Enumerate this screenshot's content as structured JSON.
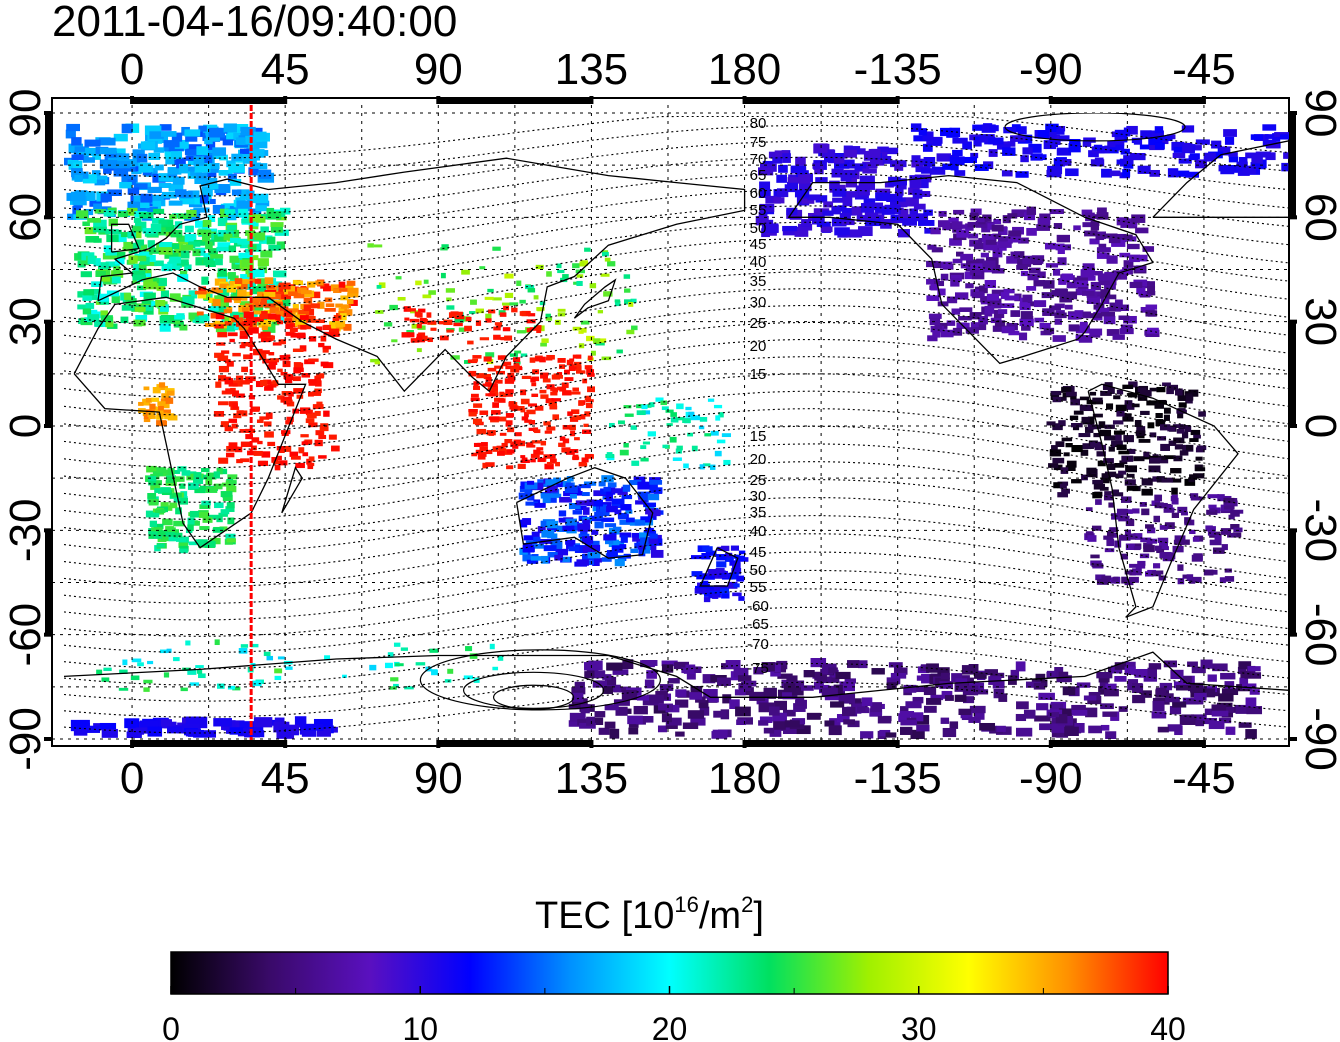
{
  "timestamp": "2011-04-16/09:40:00",
  "top_axis_labels": [
    "0",
    "45",
    "90",
    "135",
    "180",
    "-135",
    "-90",
    "-45"
  ],
  "bottom_axis_labels": [
    "0",
    "45",
    "90",
    "135",
    "180",
    "-135",
    "-90",
    "-45"
  ],
  "left_axis_labels": [
    "90",
    "60",
    "30",
    "0",
    "-30",
    "-60",
    "-90"
  ],
  "right_axis_labels": [
    "90",
    "60",
    "30",
    "0",
    "-30",
    "-60",
    "-90"
  ],
  "contour_labels_upper": [
    "80",
    "75",
    "70",
    "65",
    "60",
    "55",
    "50",
    "45",
    "40",
    "35",
    "30",
    "25",
    "20",
    "15"
  ],
  "contour_labels_lower": [
    "15",
    "20",
    "25",
    "30",
    "35",
    "40",
    "45",
    "50",
    "55",
    "-60",
    "-65",
    "-70",
    "-75"
  ],
  "colorbar": {
    "title": "TEC  [10",
    "title_sup": "16",
    "title_mid": "/m",
    "title_sup2": "2",
    "title_end": "]",
    "ticks": [
      "0",
      "10",
      "20",
      "30",
      "40"
    ],
    "min": 0,
    "max": 40,
    "colors": [
      "#000000",
      "#3a0a6a",
      "#5a10c0",
      "#0000ff",
      "#0090ff",
      "#00ffff",
      "#00e060",
      "#a0f000",
      "#ffff00",
      "#ff9000",
      "#ff0000"
    ]
  },
  "map": {
    "lon_center": 180,
    "lon_range": [
      -20,
      340
    ],
    "lat_range": [
      -90,
      90
    ],
    "meridian_marker_lon": 35,
    "meridian_marker_color": "#ff0000"
  }
}
